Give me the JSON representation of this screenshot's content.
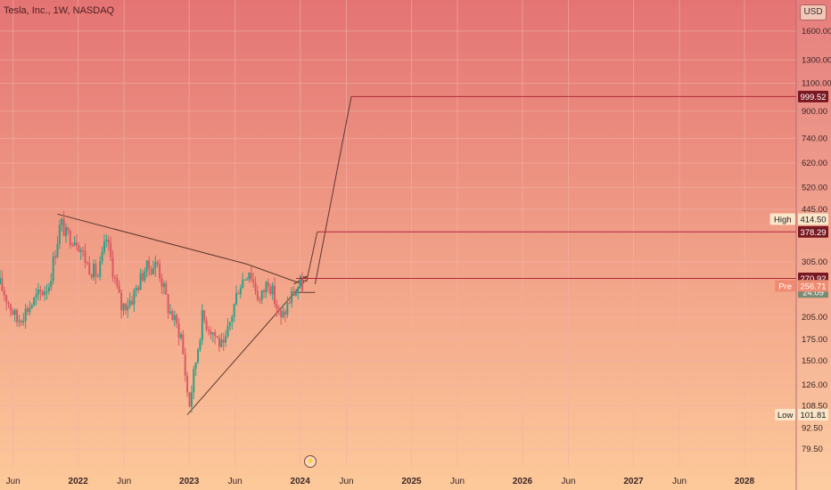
{
  "title": "Tesla, Inc., 1W, NASDAQ",
  "currency_button": "USD",
  "colors": {
    "bg_top": "#e47474",
    "bg_bottom": "#fdc99a",
    "up_candle": "#2f9e86",
    "down_candle": "#d95a62",
    "trendline": "#5a3a30",
    "target_line": "#b0283a",
    "grid": "#f3b0a6"
  },
  "icons": [
    "flash-icon"
  ],
  "chart_data": {
    "type": "candlestick",
    "y_scale": "log",
    "ylim": [
      70,
      2000
    ],
    "x_range": [
      "2021-04-19",
      "2028-06-19"
    ],
    "y_ticks": [
      "1600.00",
      "1300.00",
      "1100.00",
      "900.00",
      "740.00",
      "620.00",
      "520.00",
      "445.00",
      "305.00",
      "205.00",
      "175.00",
      "150.00",
      "126.00",
      "108.50",
      "92.50",
      "79.50"
    ],
    "x_ticks": [
      {
        "label": "Jun",
        "date": "2021-06-01"
      },
      {
        "label": "2022",
        "date": "2022-01-01"
      },
      {
        "label": "Jun",
        "date": "2022-06-01"
      },
      {
        "label": "2023",
        "date": "2023-01-01"
      },
      {
        "label": "Jun",
        "date": "2023-06-01"
      },
      {
        "label": "2024",
        "date": "2024-01-01"
      },
      {
        "label": "Jun",
        "date": "2024-06-01"
      },
      {
        "label": "2025",
        "date": "2025-01-01"
      },
      {
        "label": "Jun",
        "date": "2025-06-01"
      },
      {
        "label": "2026",
        "date": "2026-01-01"
      },
      {
        "label": "Jun",
        "date": "2026-06-01"
      },
      {
        "label": "2027",
        "date": "2027-01-01"
      },
      {
        "label": "Jun",
        "date": "2027-06-01"
      },
      {
        "label": "2028",
        "date": "2028-01-01"
      }
    ],
    "price_badges": [
      {
        "value": "999.52",
        "kind": "target"
      },
      {
        "value": "414.50",
        "label": "High",
        "kind": "highlow"
      },
      {
        "value": "378.29",
        "kind": "target"
      },
      {
        "value": "270.92",
        "kind": "target"
      },
      {
        "value": "257.22",
        "kind": "last"
      },
      {
        "value": "24:09",
        "kind": "countdown"
      },
      {
        "value": "256.71",
        "label": "Pre",
        "kind": "pre"
      },
      {
        "value": "101.81",
        "label": "Low",
        "kind": "highlow"
      }
    ],
    "anchors": [
      {
        "date": "2021-04-19",
        "price": 260
      },
      {
        "date": "2021-06-14",
        "price": 200
      },
      {
        "date": "2021-08-16",
        "price": 235
      },
      {
        "date": "2021-09-27",
        "price": 260
      },
      {
        "date": "2021-11-01",
        "price": 390
      },
      {
        "date": "2021-11-08",
        "price": 400
      },
      {
        "date": "2021-11-22",
        "price": 370
      },
      {
        "date": "2021-12-27",
        "price": 360
      },
      {
        "date": "2022-01-31",
        "price": 300
      },
      {
        "date": "2022-03-07",
        "price": 275
      },
      {
        "date": "2022-04-04",
        "price": 360
      },
      {
        "date": "2022-05-09",
        "price": 250
      },
      {
        "date": "2022-05-23",
        "price": 220
      },
      {
        "date": "2022-06-27",
        "price": 235
      },
      {
        "date": "2022-08-08",
        "price": 290
      },
      {
        "date": "2022-09-19",
        "price": 300
      },
      {
        "date": "2022-10-24",
        "price": 220
      },
      {
        "date": "2022-12-05",
        "price": 180
      },
      {
        "date": "2022-12-26",
        "price": 120
      },
      {
        "date": "2023-01-02",
        "price": 110
      },
      {
        "date": "2023-02-13",
        "price": 205
      },
      {
        "date": "2023-03-20",
        "price": 185
      },
      {
        "date": "2023-04-24",
        "price": 162
      },
      {
        "date": "2023-06-12",
        "price": 255
      },
      {
        "date": "2023-07-17",
        "price": 290
      },
      {
        "date": "2023-08-21",
        "price": 230
      },
      {
        "date": "2023-09-18",
        "price": 270
      },
      {
        "date": "2023-10-30",
        "price": 200
      },
      {
        "date": "2023-12-04",
        "price": 240
      },
      {
        "date": "2023-12-25",
        "price": 255
      },
      {
        "date": "2024-01-08",
        "price": 257
      }
    ],
    "trendlines": [
      {
        "name": "upper-trendline",
        "points": [
          [
            "2021-10-25",
            430
          ],
          [
            "2023-07-10",
            300
          ],
          [
            "2024-01-08",
            260
          ]
        ]
      },
      {
        "name": "lower-trendline",
        "points": [
          [
            "2022-12-26",
            101.81
          ],
          [
            "2024-01-15",
            265
          ]
        ]
      },
      {
        "name": "projection-1",
        "points": [
          [
            "2023-12-11",
            260
          ],
          [
            "2024-01-22",
            275
          ]
        ]
      },
      {
        "name": "projection-2",
        "points": [
          [
            "2024-01-22",
            265
          ],
          [
            "2024-02-26",
            378.29
          ]
        ]
      },
      {
        "name": "projection-3",
        "points": [
          [
            "2024-02-19",
            260
          ],
          [
            "2024-06-17",
            999.52
          ]
        ]
      },
      {
        "name": "box-bottom",
        "points": [
          [
            "2023-12-11",
            245
          ],
          [
            "2024-02-19",
            245
          ]
        ]
      }
    ],
    "target_lines": [
      {
        "start": "2024-06-17",
        "price": 999.52
      },
      {
        "start": "2024-02-26",
        "price": 378.29
      },
      {
        "start": "2023-12-18",
        "price": 270.92
      }
    ]
  }
}
